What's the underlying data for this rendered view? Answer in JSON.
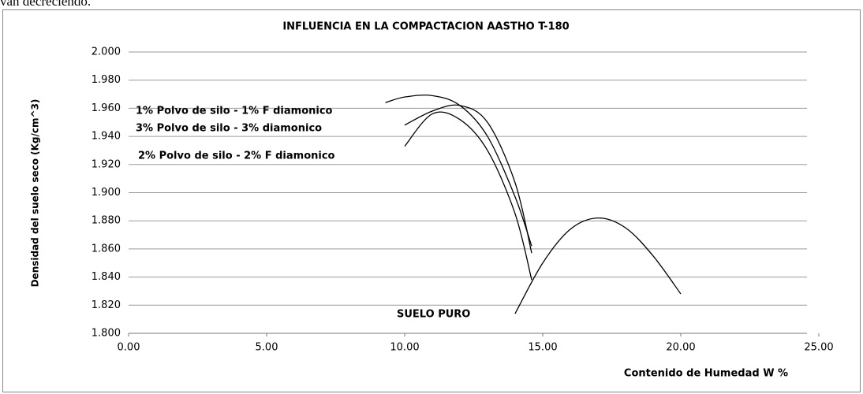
{
  "text_above": "van decreciendo.",
  "chart_data": {
    "type": "line",
    "title": "INFLUENCIA  EN LA COMPACTACION  AASTHO  T-180",
    "x_label": "Contenido de Humedad  W %",
    "y_label": "Densidad del suelo seco (Kg/cm^3)",
    "xlim": [
      0,
      25
    ],
    "ylim": [
      1.8,
      2.0
    ],
    "xticks": [
      {
        "value": 0,
        "label": "0.00"
      },
      {
        "value": 5,
        "label": "5.00"
      },
      {
        "value": 10,
        "label": "10.00"
      },
      {
        "value": 15,
        "label": "15.00"
      },
      {
        "value": 20,
        "label": "20.00"
      },
      {
        "value": 25,
        "label": "25.00"
      }
    ],
    "yticks": [
      {
        "value": 1.8,
        "label": "1.800"
      },
      {
        "value": 1.82,
        "label": "1.820"
      },
      {
        "value": 1.84,
        "label": "1.840"
      },
      {
        "value": 1.86,
        "label": "1.860"
      },
      {
        "value": 1.88,
        "label": "1.880"
      },
      {
        "value": 1.9,
        "label": "1.900"
      },
      {
        "value": 1.92,
        "label": "1.920"
      },
      {
        "value": 1.94,
        "label": "1.940"
      },
      {
        "value": 1.96,
        "label": "1.960"
      },
      {
        "value": 1.98,
        "label": "1.980"
      },
      {
        "value": 2.0,
        "label": "2.000"
      }
    ],
    "grid": true,
    "series": [
      {
        "name": "1% Polvo de silo - 1% F diamonico",
        "color": "#000000",
        "x": [
          9.3,
          10,
          11,
          12,
          13,
          14,
          14.6
        ],
        "values": [
          1.964,
          1.968,
          1.969,
          1.962,
          1.94,
          1.897,
          1.862
        ]
      },
      {
        "name": "3% Polvo de silo - 3% diamonico",
        "color": "#000000",
        "x": [
          10,
          11,
          12,
          13,
          14,
          14.6
        ],
        "values": [
          1.948,
          1.958,
          1.962,
          1.95,
          1.907,
          1.857
        ]
      },
      {
        "name": "2% Polvo de silo - 2% F diamonico",
        "color": "#000000",
        "x": [
          10,
          11,
          12,
          13,
          14,
          14.6
        ],
        "values": [
          1.933,
          1.956,
          1.952,
          1.93,
          1.885,
          1.838
        ]
      },
      {
        "name": "SUELO  PURO",
        "color": "#000000",
        "x": [
          14,
          15,
          16,
          17,
          18,
          19,
          20
        ],
        "values": [
          1.814,
          1.85,
          1.874,
          1.882,
          1.875,
          1.855,
          1.828
        ]
      }
    ]
  }
}
